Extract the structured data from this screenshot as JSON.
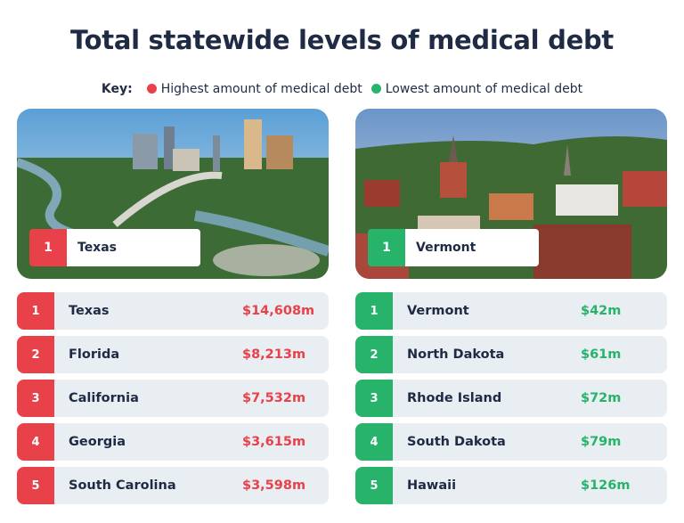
{
  "title": "Total statewide levels of medical debt",
  "key": {
    "label": "Key:",
    "items": [
      "Highest amount of medical debt",
      "Lowest amount of medical debt"
    ]
  },
  "panels": [
    {
      "badge": {
        "rank": 1,
        "name": "Texas"
      },
      "rows": [
        [
          1,
          "Texas",
          "$14,608m"
        ],
        [
          2,
          "Florida",
          "$8,213m"
        ],
        [
          3,
          "California",
          "$7,532m"
        ],
        [
          4,
          "Georgia",
          "$3,615m"
        ],
        [
          5,
          "South Carolina",
          "$3,598m"
        ]
      ]
    },
    {
      "badge": {
        "rank": 1,
        "name": "Vermont"
      },
      "rows": [
        [
          1,
          "Vermont",
          "$42m"
        ],
        [
          2,
          "North Dakota",
          "$61m"
        ],
        [
          3,
          "Rhode Island",
          "$72m"
        ],
        [
          4,
          "South Dakota",
          "$79m"
        ],
        [
          5,
          "Hawaii",
          "$126m"
        ]
      ]
    }
  ]
}
